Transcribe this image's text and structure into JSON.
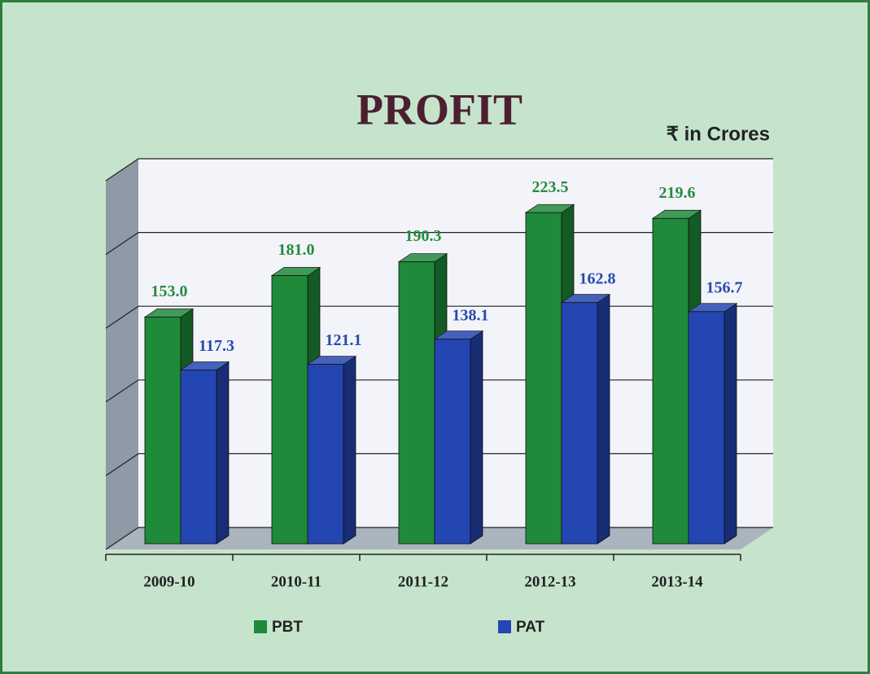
{
  "chart_data": {
    "type": "bar3d",
    "title": "PROFIT",
    "subtitle": "₹ in Crores",
    "categories": [
      "2009-10",
      "2010-11",
      "2011-12",
      "2012-13",
      "2013-14"
    ],
    "series": [
      {
        "name": "PBT",
        "color": "#1e8a3a",
        "label_color": "#268a3c",
        "values": [
          153.0,
          181.0,
          190.3,
          223.5,
          219.6
        ],
        "value_labels": [
          "153.0",
          "181.0",
          "190.3",
          "223.5",
          "219.6"
        ]
      },
      {
        "name": "PAT",
        "color": "#2446b2",
        "label_color": "#2a4aa8",
        "values": [
          117.3,
          121.1,
          138.1,
          162.8,
          156.7
        ],
        "value_labels": [
          "117.3",
          "121.1",
          "138.1",
          "162.8",
          "156.7"
        ]
      }
    ],
    "ylim": [
      0,
      250
    ],
    "yticks": [
      0,
      50,
      100,
      150,
      200,
      250
    ],
    "grid": true
  }
}
